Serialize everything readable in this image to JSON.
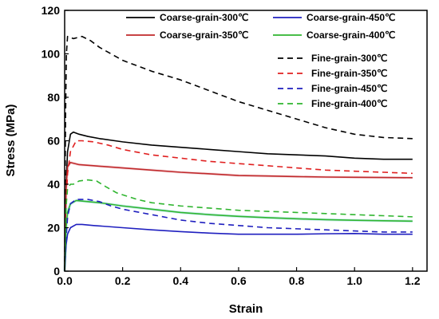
{
  "chart_data": {
    "type": "line",
    "xlabel": "Strain",
    "ylabel": "Stress (MPa)",
    "xlim": [
      0.0,
      1.25
    ],
    "ylim": [
      0,
      120
    ],
    "xticks": [
      "0.0",
      "0.2",
      "0.4",
      "0.6",
      "0.8",
      "1.0",
      "1.2"
    ],
    "yticks": [
      "0",
      "20",
      "40",
      "60",
      "80",
      "100",
      "120"
    ],
    "grid": false,
    "legend_placement": "top-right",
    "series": [
      {
        "name": "Coarse-grain-300℃",
        "color": "#000000",
        "style": "solid",
        "x": [
          0,
          0.005,
          0.01,
          0.02,
          0.03,
          0.05,
          0.08,
          0.12,
          0.2,
          0.3,
          0.4,
          0.5,
          0.6,
          0.7,
          0.8,
          0.9,
          1.0,
          1.1,
          1.2
        ],
        "y": [
          0,
          40,
          55,
          63,
          64,
          63,
          62,
          61,
          59.5,
          58,
          57,
          56,
          55,
          54,
          53.5,
          53,
          52,
          51.5,
          51.5
        ]
      },
      {
        "name": "Coarse-grain-450℃",
        "color": "#1f1fbf",
        "style": "solid",
        "x": [
          0,
          0.005,
          0.01,
          0.02,
          0.04,
          0.06,
          0.1,
          0.15,
          0.2,
          0.3,
          0.4,
          0.5,
          0.6,
          0.7,
          0.8,
          0.9,
          1.0,
          1.1,
          1.2
        ],
        "y": [
          0,
          12,
          17,
          20,
          21.5,
          21.5,
          21,
          20.5,
          20,
          19,
          18.2,
          17.5,
          17,
          17,
          17,
          17.2,
          17.3,
          17,
          17
        ]
      },
      {
        "name": "Coarse-grain-350℃",
        "color": "#c0282a",
        "style": "solid",
        "band": "#f6dde0",
        "x": [
          0,
          0.005,
          0.01,
          0.02,
          0.05,
          0.1,
          0.2,
          0.3,
          0.4,
          0.5,
          0.6,
          0.7,
          0.8,
          0.9,
          1.0,
          1.1,
          1.2
        ],
        "y": [
          0,
          38,
          48,
          50,
          49,
          48.5,
          47.5,
          46.5,
          45.5,
          44.8,
          44,
          43.8,
          43.5,
          43.3,
          43.2,
          43.1,
          43
        ]
      },
      {
        "name": "Coarse-grain-400℃",
        "color": "#2fb52f",
        "style": "solid",
        "band": "#c6ecef",
        "x": [
          0,
          0.005,
          0.01,
          0.02,
          0.04,
          0.08,
          0.12,
          0.2,
          0.3,
          0.4,
          0.5,
          0.6,
          0.7,
          0.8,
          0.9,
          1.0,
          1.1,
          1.2
        ],
        "y": [
          0,
          20,
          27,
          31,
          32.5,
          32,
          31.5,
          30,
          28.5,
          27,
          26,
          25.2,
          24.6,
          24.1,
          23.7,
          23.4,
          23.2,
          23
        ]
      },
      {
        "name": "Fine-grain-300℃",
        "color": "#000000",
        "style": "dashed",
        "x": [
          0,
          0.003,
          0.006,
          0.01,
          0.03,
          0.06,
          0.09,
          0.12,
          0.2,
          0.3,
          0.4,
          0.5,
          0.6,
          0.7,
          0.8,
          0.9,
          1.0,
          1.1,
          1.2
        ],
        "y": [
          0,
          70,
          100,
          108,
          107,
          108,
          106,
          103,
          97,
          92,
          88,
          83,
          78,
          74,
          70,
          66,
          63,
          61.5,
          61
        ]
      },
      {
        "name": "Fine-grain-350℃",
        "color": "#e02020",
        "style": "dashed",
        "x": [
          0,
          0.005,
          0.01,
          0.02,
          0.04,
          0.06,
          0.1,
          0.15,
          0.2,
          0.3,
          0.4,
          0.5,
          0.6,
          0.7,
          0.8,
          0.9,
          1.0,
          1.1,
          1.2
        ],
        "y": [
          0,
          30,
          45,
          55,
          60,
          60,
          59.5,
          58,
          56,
          53.5,
          52,
          50.5,
          49.5,
          48.5,
          47.5,
          46.5,
          46,
          45.5,
          45
        ]
      },
      {
        "name": "Fine-grain-450℃",
        "color": "#1f1fbf",
        "style": "dashed",
        "x": [
          0,
          0.005,
          0.01,
          0.02,
          0.04,
          0.08,
          0.12,
          0.16,
          0.2,
          0.3,
          0.4,
          0.5,
          0.6,
          0.7,
          0.8,
          0.9,
          1.0,
          1.1,
          1.2
        ],
        "y": [
          0,
          15,
          25,
          31,
          33,
          33,
          32,
          30,
          28.5,
          26,
          23.5,
          22,
          21,
          20,
          19.5,
          19,
          18.5,
          18,
          18
        ]
      },
      {
        "name": "Fine-grain-400℃",
        "color": "#2fb52f",
        "style": "dashed",
        "x": [
          0,
          0.005,
          0.01,
          0.02,
          0.03,
          0.05,
          0.08,
          0.11,
          0.14,
          0.18,
          0.25,
          0.3,
          0.4,
          0.5,
          0.6,
          0.7,
          0.8,
          0.9,
          1.0,
          1.1,
          1.2
        ],
        "y": [
          0,
          30,
          38,
          40,
          40,
          41.5,
          42,
          41.5,
          39,
          36,
          33,
          31.5,
          30,
          29,
          28,
          27.5,
          27,
          26.5,
          26,
          25.5,
          25
        ]
      }
    ]
  }
}
